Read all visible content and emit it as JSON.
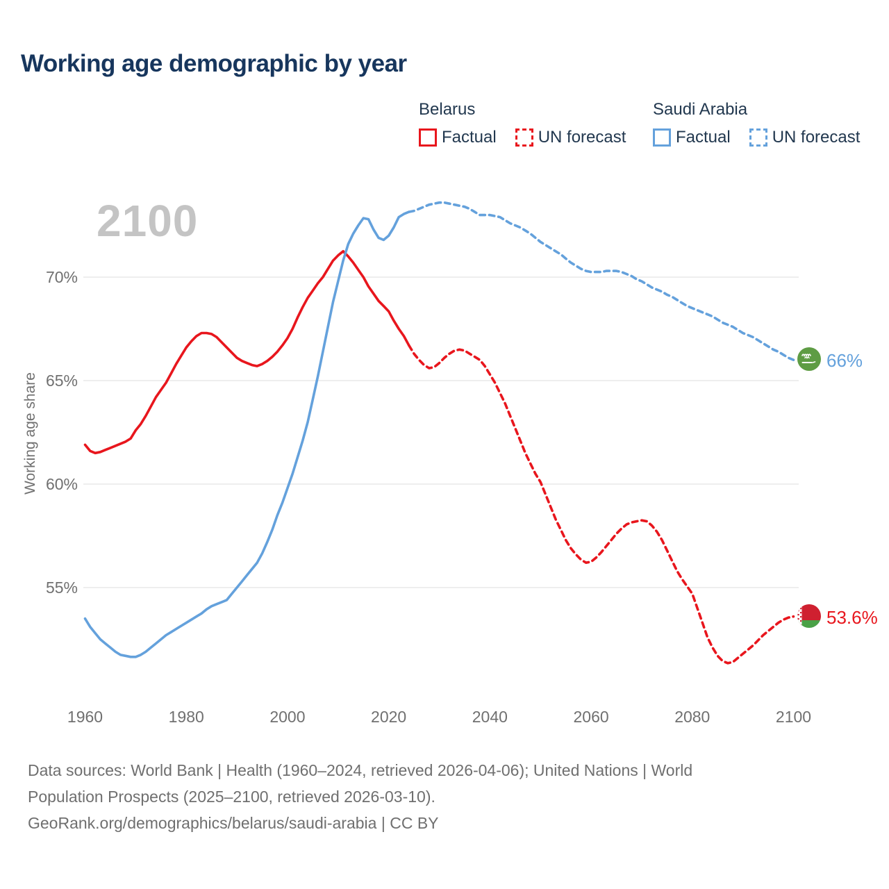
{
  "title": "Working age demographic by year",
  "watermark": "2100",
  "y_axis_title": "Working age share",
  "legend": {
    "belarus": {
      "header": "Belarus",
      "color": "#e8161d",
      "factual_label": "Factual",
      "forecast_label": "UN forecast"
    },
    "saudi": {
      "header": "Saudi Arabia",
      "color": "#64a1dc",
      "factual_label": "Factual",
      "forecast_label": "UN forecast"
    }
  },
  "end_labels": {
    "saudi": {
      "label": "66%",
      "value": 66.0,
      "flag": "saudi-arabia-flag",
      "color": "#64a1dc"
    },
    "belarus": {
      "label": "53.6%",
      "value": 53.6,
      "flag": "belarus-flag",
      "color": "#e8161d"
    }
  },
  "footer": {
    "line1": "Data sources: World Bank | Health (1960–2024, retrieved 2026-04-06); United Nations | World",
    "line2": "Population Prospects (2025–2100, retrieved 2026-03-10).",
    "line3": "GeoRank.org/demographics/belarus/saudi-arabia | CC BY"
  },
  "chart_data": {
    "type": "line",
    "title": "Working age demographic by year",
    "xlabel": "",
    "ylabel": "Working age share",
    "x_ticks": [
      1960,
      1980,
      2000,
      2020,
      2040,
      2060,
      2080,
      2100
    ],
    "y_ticks": [
      55,
      60,
      65,
      70
    ],
    "y_tick_suffix": "%",
    "xlim": [
      1960,
      2100
    ],
    "ylim": [
      50.5,
      74.5
    ],
    "grid": "horizontal",
    "legend_position": "top-right",
    "series": [
      {
        "name": "Belarus Factual",
        "color": "#e8161d",
        "style": "solid",
        "points": [
          [
            1960,
            61.9
          ],
          [
            1961,
            61.6
          ],
          [
            1962,
            61.5
          ],
          [
            1963,
            61.55
          ],
          [
            1964,
            61.65
          ],
          [
            1965,
            61.75
          ],
          [
            1966,
            61.85
          ],
          [
            1967,
            61.95
          ],
          [
            1968,
            62.05
          ],
          [
            1969,
            62.2
          ],
          [
            1970,
            62.6
          ],
          [
            1971,
            62.9
          ],
          [
            1972,
            63.3
          ],
          [
            1973,
            63.75
          ],
          [
            1974,
            64.2
          ],
          [
            1975,
            64.55
          ],
          [
            1976,
            64.9
          ],
          [
            1977,
            65.35
          ],
          [
            1978,
            65.8
          ],
          [
            1979,
            66.2
          ],
          [
            1980,
            66.6
          ],
          [
            1981,
            66.9
          ],
          [
            1982,
            67.15
          ],
          [
            1983,
            67.3
          ],
          [
            1984,
            67.3
          ],
          [
            1985,
            67.25
          ],
          [
            1986,
            67.1
          ],
          [
            1987,
            66.85
          ],
          [
            1988,
            66.6
          ],
          [
            1989,
            66.35
          ],
          [
            1990,
            66.1
          ],
          [
            1991,
            65.95
          ],
          [
            1992,
            65.85
          ],
          [
            1993,
            65.75
          ],
          [
            1994,
            65.7
          ],
          [
            1995,
            65.8
          ],
          [
            1996,
            65.95
          ],
          [
            1997,
            66.15
          ],
          [
            1998,
            66.4
          ],
          [
            1999,
            66.7
          ],
          [
            2000,
            67.05
          ],
          [
            2001,
            67.5
          ],
          [
            2002,
            68.05
          ],
          [
            2003,
            68.55
          ],
          [
            2004,
            69.0
          ],
          [
            2005,
            69.35
          ],
          [
            2006,
            69.7
          ],
          [
            2007,
            70.0
          ],
          [
            2008,
            70.4
          ],
          [
            2009,
            70.8
          ],
          [
            2010,
            71.05
          ],
          [
            2011,
            71.25
          ],
          [
            2012,
            71.0
          ],
          [
            2013,
            70.7
          ],
          [
            2014,
            70.35
          ],
          [
            2015,
            70.0
          ],
          [
            2016,
            69.55
          ],
          [
            2017,
            69.2
          ],
          [
            2018,
            68.85
          ],
          [
            2019,
            68.6
          ],
          [
            2020,
            68.35
          ],
          [
            2021,
            67.9
          ],
          [
            2022,
            67.5
          ],
          [
            2023,
            67.15
          ],
          [
            2024,
            66.7
          ]
        ]
      },
      {
        "name": "Belarus UN forecast",
        "color": "#e8161d",
        "style": "dashed",
        "points": [
          [
            2024,
            66.7
          ],
          [
            2025,
            66.3
          ],
          [
            2026,
            66.0
          ],
          [
            2027,
            65.75
          ],
          [
            2028,
            65.6
          ],
          [
            2029,
            65.65
          ],
          [
            2030,
            65.85
          ],
          [
            2031,
            66.1
          ],
          [
            2032,
            66.3
          ],
          [
            2033,
            66.45
          ],
          [
            2034,
            66.5
          ],
          [
            2035,
            66.45
          ],
          [
            2036,
            66.3
          ],
          [
            2037,
            66.15
          ],
          [
            2038,
            66.0
          ],
          [
            2039,
            65.7
          ],
          [
            2040,
            65.3
          ],
          [
            2041,
            64.9
          ],
          [
            2042,
            64.4
          ],
          [
            2043,
            63.9
          ],
          [
            2044,
            63.3
          ],
          [
            2045,
            62.7
          ],
          [
            2046,
            62.1
          ],
          [
            2047,
            61.5
          ],
          [
            2048,
            61.0
          ],
          [
            2049,
            60.5
          ],
          [
            2050,
            60.1
          ],
          [
            2051,
            59.5
          ],
          [
            2052,
            58.9
          ],
          [
            2053,
            58.3
          ],
          [
            2054,
            57.8
          ],
          [
            2055,
            57.3
          ],
          [
            2056,
            56.9
          ],
          [
            2057,
            56.6
          ],
          [
            2058,
            56.35
          ],
          [
            2059,
            56.2
          ],
          [
            2060,
            56.25
          ],
          [
            2061,
            56.45
          ],
          [
            2062,
            56.7
          ],
          [
            2063,
            57.0
          ],
          [
            2064,
            57.3
          ],
          [
            2065,
            57.6
          ],
          [
            2066,
            57.85
          ],
          [
            2067,
            58.05
          ],
          [
            2068,
            58.15
          ],
          [
            2069,
            58.2
          ],
          [
            2070,
            58.25
          ],
          [
            2071,
            58.2
          ],
          [
            2072,
            58.0
          ],
          [
            2073,
            57.7
          ],
          [
            2074,
            57.3
          ],
          [
            2075,
            56.8
          ],
          [
            2076,
            56.3
          ],
          [
            2077,
            55.8
          ],
          [
            2078,
            55.4
          ],
          [
            2079,
            55.05
          ],
          [
            2080,
            54.7
          ],
          [
            2081,
            54.0
          ],
          [
            2082,
            53.3
          ],
          [
            2083,
            52.6
          ],
          [
            2084,
            52.1
          ],
          [
            2085,
            51.7
          ],
          [
            2086,
            51.45
          ],
          [
            2087,
            51.35
          ],
          [
            2088,
            51.4
          ],
          [
            2089,
            51.6
          ],
          [
            2090,
            51.8
          ],
          [
            2091,
            52.0
          ],
          [
            2092,
            52.2
          ],
          [
            2093,
            52.45
          ],
          [
            2094,
            52.7
          ],
          [
            2095,
            52.9
          ],
          [
            2096,
            53.1
          ],
          [
            2097,
            53.3
          ],
          [
            2098,
            53.45
          ],
          [
            2099,
            53.55
          ],
          [
            2100,
            53.6
          ]
        ]
      },
      {
        "name": "Saudi Arabia Factual",
        "color": "#64a1dc",
        "style": "solid",
        "points": [
          [
            1960,
            53.5
          ],
          [
            1961,
            53.1
          ],
          [
            1962,
            52.8
          ],
          [
            1963,
            52.5
          ],
          [
            1964,
            52.3
          ],
          [
            1965,
            52.1
          ],
          [
            1966,
            51.9
          ],
          [
            1967,
            51.75
          ],
          [
            1968,
            51.7
          ],
          [
            1969,
            51.65
          ],
          [
            1970,
            51.65
          ],
          [
            1971,
            51.75
          ],
          [
            1972,
            51.9
          ],
          [
            1973,
            52.1
          ],
          [
            1974,
            52.3
          ],
          [
            1975,
            52.5
          ],
          [
            1976,
            52.7
          ],
          [
            1977,
            52.85
          ],
          [
            1978,
            53.0
          ],
          [
            1979,
            53.15
          ],
          [
            1980,
            53.3
          ],
          [
            1981,
            53.45
          ],
          [
            1982,
            53.6
          ],
          [
            1983,
            53.75
          ],
          [
            1984,
            53.95
          ],
          [
            1985,
            54.1
          ],
          [
            1986,
            54.2
          ],
          [
            1987,
            54.3
          ],
          [
            1988,
            54.4
          ],
          [
            1989,
            54.7
          ],
          [
            1990,
            55.0
          ],
          [
            1991,
            55.3
          ],
          [
            1992,
            55.6
          ],
          [
            1993,
            55.9
          ],
          [
            1994,
            56.2
          ],
          [
            1995,
            56.65
          ],
          [
            1996,
            57.2
          ],
          [
            1997,
            57.8
          ],
          [
            1998,
            58.5
          ],
          [
            1999,
            59.1
          ],
          [
            2000,
            59.8
          ],
          [
            2001,
            60.5
          ],
          [
            2002,
            61.3
          ],
          [
            2003,
            62.1
          ],
          [
            2004,
            63.0
          ],
          [
            2005,
            64.1
          ],
          [
            2006,
            65.2
          ],
          [
            2007,
            66.4
          ],
          [
            2008,
            67.6
          ],
          [
            2009,
            68.8
          ],
          [
            2010,
            69.8
          ],
          [
            2011,
            70.8
          ],
          [
            2012,
            71.6
          ],
          [
            2013,
            72.1
          ],
          [
            2014,
            72.5
          ],
          [
            2015,
            72.85
          ],
          [
            2016,
            72.8
          ],
          [
            2017,
            72.3
          ],
          [
            2018,
            71.9
          ],
          [
            2019,
            71.8
          ],
          [
            2020,
            72.0
          ],
          [
            2021,
            72.4
          ],
          [
            2022,
            72.9
          ],
          [
            2023,
            73.05
          ],
          [
            2024,
            73.15
          ]
        ]
      },
      {
        "name": "Saudi Arabia UN forecast",
        "color": "#64a1dc",
        "style": "dashed",
        "points": [
          [
            2024,
            73.15
          ],
          [
            2025,
            73.2
          ],
          [
            2026,
            73.3
          ],
          [
            2027,
            73.4
          ],
          [
            2028,
            73.5
          ],
          [
            2029,
            73.55
          ],
          [
            2030,
            73.6
          ],
          [
            2031,
            73.6
          ],
          [
            2032,
            73.55
          ],
          [
            2033,
            73.5
          ],
          [
            2034,
            73.45
          ],
          [
            2035,
            73.4
          ],
          [
            2036,
            73.3
          ],
          [
            2037,
            73.15
          ],
          [
            2038,
            73.0
          ],
          [
            2039,
            73.0
          ],
          [
            2040,
            73.0
          ],
          [
            2041,
            72.95
          ],
          [
            2042,
            72.9
          ],
          [
            2043,
            72.75
          ],
          [
            2044,
            72.6
          ],
          [
            2045,
            72.5
          ],
          [
            2046,
            72.4
          ],
          [
            2047,
            72.25
          ],
          [
            2048,
            72.1
          ],
          [
            2049,
            71.9
          ],
          [
            2050,
            71.7
          ],
          [
            2051,
            71.55
          ],
          [
            2052,
            71.4
          ],
          [
            2053,
            71.25
          ],
          [
            2054,
            71.1
          ],
          [
            2055,
            70.9
          ],
          [
            2056,
            70.7
          ],
          [
            2057,
            70.55
          ],
          [
            2058,
            70.4
          ],
          [
            2059,
            70.3
          ],
          [
            2060,
            70.25
          ],
          [
            2061,
            70.25
          ],
          [
            2062,
            70.25
          ],
          [
            2063,
            70.3
          ],
          [
            2064,
            70.3
          ],
          [
            2065,
            70.3
          ],
          [
            2066,
            70.25
          ],
          [
            2067,
            70.15
          ],
          [
            2068,
            70.05
          ],
          [
            2069,
            69.9
          ],
          [
            2070,
            69.8
          ],
          [
            2071,
            69.65
          ],
          [
            2072,
            69.5
          ],
          [
            2073,
            69.4
          ],
          [
            2074,
            69.3
          ],
          [
            2075,
            69.15
          ],
          [
            2076,
            69.05
          ],
          [
            2077,
            68.9
          ],
          [
            2078,
            68.75
          ],
          [
            2079,
            68.6
          ],
          [
            2080,
            68.5
          ],
          [
            2081,
            68.4
          ],
          [
            2082,
            68.3
          ],
          [
            2083,
            68.2
          ],
          [
            2084,
            68.1
          ],
          [
            2085,
            67.95
          ],
          [
            2086,
            67.8
          ],
          [
            2087,
            67.7
          ],
          [
            2088,
            67.6
          ],
          [
            2089,
            67.45
          ],
          [
            2090,
            67.3
          ],
          [
            2091,
            67.2
          ],
          [
            2092,
            67.1
          ],
          [
            2093,
            66.95
          ],
          [
            2094,
            66.8
          ],
          [
            2095,
            66.65
          ],
          [
            2096,
            66.5
          ],
          [
            2097,
            66.4
          ],
          [
            2098,
            66.25
          ],
          [
            2099,
            66.1
          ],
          [
            2100,
            66.0
          ]
        ]
      }
    ]
  }
}
